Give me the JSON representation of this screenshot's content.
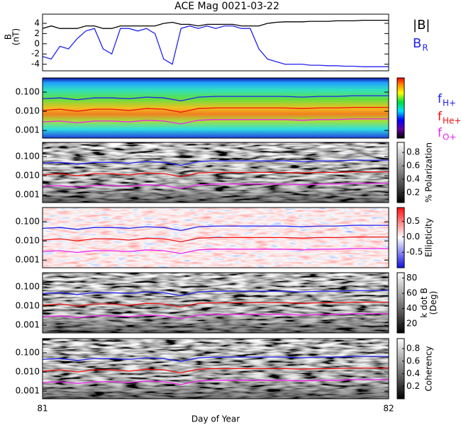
{
  "title": "ACE Mag 0021-03-22",
  "chart_data": [
    {
      "type": "line",
      "ylabel": [
        "B",
        "(nT)"
      ],
      "xlim": [
        81,
        82
      ],
      "ylim": [
        -5.3,
        5.8
      ],
      "yticks": [
        -4,
        -2,
        0,
        2,
        4
      ],
      "x": [
        81,
        81.025,
        81.05,
        81.075,
        81.1,
        81.125,
        81.15,
        81.175,
        81.2,
        81.225,
        81.25,
        81.275,
        81.3,
        81.325,
        81.35,
        81.375,
        81.4,
        81.425,
        81.45,
        81.475,
        81.5,
        81.525,
        81.55,
        81.575,
        81.6,
        81.625,
        81.65,
        81.675,
        81.7,
        81.725,
        81.75,
        81.775,
        81.8,
        81.825,
        81.85,
        81.875,
        81.9,
        81.925,
        81.95,
        81.975,
        82
      ],
      "series": [
        {
          "name": "|B|",
          "color": "#000000",
          "values": [
            3,
            3.5,
            3,
            3,
            3,
            3.5,
            3.5,
            3,
            3,
            3.5,
            3.5,
            3.5,
            3.5,
            3.5,
            4,
            4.2,
            3.8,
            3.8,
            3.5,
            3.8,
            3.8,
            3.8,
            3.8,
            3.5,
            3.5,
            3.5,
            4,
            4.2,
            4.3,
            4.3,
            4.3,
            4.4,
            4.4,
            4.4,
            4.5,
            4.5,
            4.5,
            4.6,
            4.6,
            4.6,
            4.6
          ]
        },
        {
          "name": "B",
          "subscript": "R",
          "color": "#2222ee",
          "values": [
            -2.5,
            -3,
            -0.5,
            -1,
            1,
            2.5,
            3,
            -1,
            -2,
            3,
            3,
            2.5,
            3,
            2,
            -3,
            -4,
            3,
            3.5,
            3,
            3.5,
            3,
            3.5,
            3.5,
            3,
            3,
            -1,
            -3,
            -3.5,
            -4,
            -4,
            -4,
            -4.2,
            -4.2,
            -4.3,
            -4.3,
            -4.4,
            -4.4,
            -4.5,
            -4.5,
            -4.5,
            -4.5
          ]
        }
      ]
    },
    {
      "type": "spectrogram",
      "colormap": "rainbow",
      "log_y": true,
      "xlim": [
        81,
        82
      ],
      "ylim": [
        0.0004,
        0.55
      ],
      "yticks": [
        {
          "value": 0.001,
          "label": "0.001"
        },
        {
          "value": 0.01,
          "label": "0.010"
        },
        {
          "value": 0.1,
          "label": "0.100"
        }
      ],
      "x": [
        81,
        81.05,
        81.1,
        81.15,
        81.2,
        81.25,
        81.3,
        81.35,
        81.4,
        81.45,
        81.5,
        81.55,
        81.6,
        81.65,
        81.7,
        81.75,
        81.8,
        81.85,
        81.9,
        81.95,
        82
      ],
      "series": [
        {
          "name": "f",
          "subscript": "H+",
          "color": "#2222ee",
          "values": [
            0.045,
            0.05,
            0.04,
            0.05,
            0.05,
            0.045,
            0.055,
            0.05,
            0.035,
            0.055,
            0.06,
            0.06,
            0.06,
            0.06,
            0.06,
            0.055,
            0.06,
            0.06,
            0.065,
            0.065,
            0.065
          ]
        },
        {
          "name": "f",
          "subscript": "He+",
          "color": "#ee1111",
          "values": [
            0.011,
            0.013,
            0.01,
            0.013,
            0.013,
            0.011,
            0.014,
            0.013,
            0.009,
            0.014,
            0.015,
            0.015,
            0.015,
            0.015,
            0.015,
            0.014,
            0.015,
            0.015,
            0.016,
            0.016,
            0.016
          ]
        },
        {
          "name": "f",
          "subscript": "O+",
          "color": "#ee22ee",
          "values": [
            0.0028,
            0.0031,
            0.0025,
            0.0031,
            0.0031,
            0.0028,
            0.0034,
            0.0031,
            0.0022,
            0.0034,
            0.0037,
            0.0037,
            0.0037,
            0.0037,
            0.0037,
            0.0034,
            0.0037,
            0.0037,
            0.004,
            0.004,
            0.004
          ]
        }
      ]
    },
    {
      "type": "spectrogram",
      "colormap": "gray",
      "log_y": true,
      "xlim": [
        81,
        82
      ],
      "ylim": [
        0.0004,
        0.55
      ],
      "yticks": [
        {
          "value": 0.001,
          "label": "0.001"
        },
        {
          "value": 0.01,
          "label": "0.010"
        },
        {
          "value": 0.1,
          "label": "0.100"
        }
      ],
      "cbar_label": [
        "% Polarization"
      ],
      "cbar_lim": [
        0.05,
        0.95
      ],
      "cbar_ticks": [
        0.2,
        0.4,
        0.6,
        0.8
      ],
      "x": [
        81,
        81.05,
        81.1,
        81.15,
        81.2,
        81.25,
        81.3,
        81.35,
        81.4,
        81.45,
        81.5,
        81.55,
        81.6,
        81.65,
        81.7,
        81.75,
        81.8,
        81.85,
        81.9,
        81.95,
        82
      ],
      "series": [
        {
          "color": "#2222ee",
          "values": [
            0.045,
            0.05,
            0.04,
            0.05,
            0.05,
            0.045,
            0.055,
            0.05,
            0.035,
            0.055,
            0.06,
            0.06,
            0.06,
            0.06,
            0.06,
            0.055,
            0.06,
            0.06,
            0.065,
            0.065,
            0.065
          ]
        },
        {
          "color": "#ee1111",
          "values": [
            0.011,
            0.013,
            0.01,
            0.013,
            0.013,
            0.011,
            0.014,
            0.013,
            0.009,
            0.014,
            0.015,
            0.015,
            0.015,
            0.015,
            0.015,
            0.014,
            0.015,
            0.015,
            0.016,
            0.016,
            0.016
          ]
        },
        {
          "color": "#ee22ee",
          "values": [
            0.0028,
            0.0031,
            0.0025,
            0.0031,
            0.0031,
            0.0028,
            0.0034,
            0.0031,
            0.0022,
            0.0034,
            0.0037,
            0.0037,
            0.0037,
            0.0037,
            0.0037,
            0.0034,
            0.0037,
            0.0037,
            0.004,
            0.004,
            0.004
          ]
        }
      ]
    },
    {
      "type": "spectrogram",
      "colormap": "bwr",
      "log_y": true,
      "xlim": [
        81,
        82
      ],
      "ylim": [
        0.0004,
        0.55
      ],
      "yticks": [
        {
          "value": 0.001,
          "label": "0.001"
        },
        {
          "value": 0.01,
          "label": "0.010"
        },
        {
          "value": 0.1,
          "label": "0.100"
        }
      ],
      "cbar_label": [
        "Ellipticity"
      ],
      "cbar_lim": [
        -1.0,
        0.95
      ],
      "cbar_ticks": [
        -0.5,
        {
          "value": 0,
          "label": "0.0"
        },
        0.5
      ],
      "x": [
        81,
        81.05,
        81.1,
        81.15,
        81.2,
        81.25,
        81.3,
        81.35,
        81.4,
        81.45,
        81.5,
        81.55,
        81.6,
        81.65,
        81.7,
        81.75,
        81.8,
        81.85,
        81.9,
        81.95,
        82
      ],
      "series": [
        {
          "color": "#2222ee",
          "values": [
            0.045,
            0.05,
            0.04,
            0.05,
            0.05,
            0.045,
            0.055,
            0.05,
            0.035,
            0.055,
            0.06,
            0.06,
            0.06,
            0.06,
            0.06,
            0.055,
            0.06,
            0.06,
            0.065,
            0.065,
            0.065
          ]
        },
        {
          "color": "#ee1111",
          "values": [
            0.011,
            0.013,
            0.01,
            0.013,
            0.013,
            0.011,
            0.014,
            0.013,
            0.009,
            0.014,
            0.015,
            0.015,
            0.015,
            0.015,
            0.015,
            0.014,
            0.015,
            0.015,
            0.016,
            0.016,
            0.016
          ]
        },
        {
          "color": "#ee22ee",
          "values": [
            0.0028,
            0.0031,
            0.0025,
            0.0031,
            0.0031,
            0.0028,
            0.0034,
            0.0031,
            0.0022,
            0.0034,
            0.0037,
            0.0037,
            0.0037,
            0.0037,
            0.0037,
            0.0034,
            0.0037,
            0.0037,
            0.004,
            0.004,
            0.004
          ]
        }
      ]
    },
    {
      "type": "spectrogram",
      "colormap": "gray",
      "log_y": true,
      "xlim": [
        81,
        82
      ],
      "ylim": [
        0.0004,
        0.55
      ],
      "yticks": [
        {
          "value": 0.001,
          "label": "0.001"
        },
        {
          "value": 0.01,
          "label": "0.010"
        },
        {
          "value": 0.1,
          "label": "0.100"
        }
      ],
      "cbar_label": [
        "k dot B",
        "(Deg)"
      ],
      "cbar_lim": [
        8,
        87
      ],
      "cbar_ticks": [
        20,
        40,
        60,
        80
      ],
      "x": [
        81,
        81.05,
        81.1,
        81.15,
        81.2,
        81.25,
        81.3,
        81.35,
        81.4,
        81.45,
        81.5,
        81.55,
        81.6,
        81.65,
        81.7,
        81.75,
        81.8,
        81.85,
        81.9,
        81.95,
        82
      ],
      "series": [
        {
          "color": "#2222ee",
          "values": [
            0.045,
            0.05,
            0.04,
            0.05,
            0.05,
            0.045,
            0.055,
            0.05,
            0.035,
            0.055,
            0.06,
            0.06,
            0.06,
            0.06,
            0.06,
            0.055,
            0.06,
            0.06,
            0.065,
            0.065,
            0.065
          ]
        },
        {
          "color": "#ee1111",
          "values": [
            0.011,
            0.013,
            0.01,
            0.013,
            0.013,
            0.011,
            0.014,
            0.013,
            0.009,
            0.014,
            0.015,
            0.015,
            0.015,
            0.015,
            0.015,
            0.014,
            0.015,
            0.015,
            0.016,
            0.016,
            0.016
          ]
        },
        {
          "color": "#ee22ee",
          "values": [
            0.0028,
            0.0031,
            0.0025,
            0.0031,
            0.0031,
            0.0028,
            0.0034,
            0.0031,
            0.0022,
            0.0034,
            0.0037,
            0.0037,
            0.0037,
            0.0037,
            0.0037,
            0.0034,
            0.0037,
            0.0037,
            0.004,
            0.004,
            0.004
          ]
        }
      ]
    },
    {
      "type": "spectrogram",
      "colormap": "gray",
      "log_y": true,
      "xlim": [
        81,
        82
      ],
      "xticks": [
        81,
        82
      ],
      "xlabel": "Day of Year",
      "ylim": [
        0.0004,
        0.55
      ],
      "yticks": [
        {
          "value": 0.001,
          "label": "0.001"
        },
        {
          "value": 0.01,
          "label": "0.010"
        },
        {
          "value": 0.1,
          "label": "0.100"
        }
      ],
      "cbar_label": [
        "Coherency"
      ],
      "cbar_lim": [
        0,
        0.96
      ],
      "cbar_ticks": [
        0.2,
        0.4,
        0.6,
        0.8
      ],
      "x": [
        81,
        81.05,
        81.1,
        81.15,
        81.2,
        81.25,
        81.3,
        81.35,
        81.4,
        81.45,
        81.5,
        81.55,
        81.6,
        81.65,
        81.7,
        81.75,
        81.8,
        81.85,
        81.9,
        81.95,
        82
      ],
      "series": [
        {
          "color": "#2222ee",
          "values": [
            0.045,
            0.05,
            0.04,
            0.05,
            0.05,
            0.045,
            0.055,
            0.05,
            0.035,
            0.055,
            0.06,
            0.06,
            0.06,
            0.06,
            0.06,
            0.055,
            0.06,
            0.06,
            0.065,
            0.065,
            0.065
          ]
        },
        {
          "color": "#ee1111",
          "values": [
            0.011,
            0.013,
            0.01,
            0.013,
            0.013,
            0.011,
            0.014,
            0.013,
            0.009,
            0.014,
            0.015,
            0.015,
            0.015,
            0.015,
            0.015,
            0.014,
            0.015,
            0.015,
            0.016,
            0.016,
            0.016
          ]
        },
        {
          "color": "#ee22ee",
          "values": [
            0.0028,
            0.0031,
            0.0025,
            0.0031,
            0.0031,
            0.0028,
            0.0034,
            0.0031,
            0.0022,
            0.0034,
            0.0037,
            0.0037,
            0.0037,
            0.0037,
            0.0037,
            0.0034,
            0.0037,
            0.0037,
            0.004,
            0.004,
            0.004
          ]
        }
      ]
    }
  ]
}
